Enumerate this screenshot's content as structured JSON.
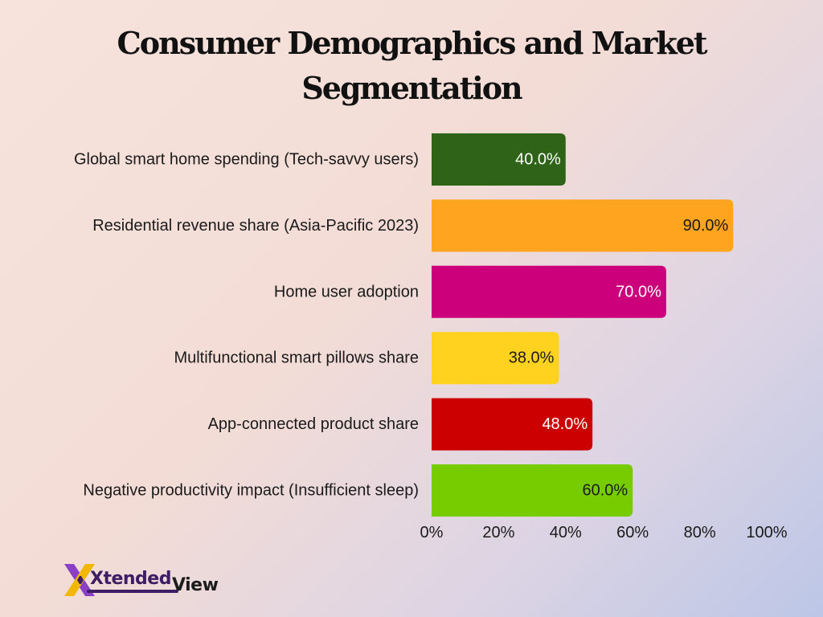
{
  "chart_data": {
    "type": "bar",
    "orientation": "horizontal",
    "title_lines": [
      "Consumer Demographics and Market",
      "Segmentation"
    ],
    "categories": [
      "Global smart home spending (Tech-savvy users)",
      "Residential revenue share (Asia-Pacific 2023)",
      "Home user adoption",
      "Multifunctional smart pillows share",
      "App-connected product share",
      "Negative productivity impact (Insufficient sleep)"
    ],
    "values": [
      40.0,
      90.0,
      70.0,
      38.0,
      48.0,
      60.0
    ],
    "value_labels": [
      "40.0%",
      "90.0%",
      "70.0%",
      "38.0%",
      "48.0%",
      "60.0%"
    ],
    "colors": [
      "#2f6418",
      "#ffa41f",
      "#cc007a",
      "#ffd21f",
      "#cc0000",
      "#77cc00"
    ],
    "label_colors": [
      "#ffffff",
      "#1a1a1a",
      "#ffffff",
      "#1a1a1a",
      "#ffffff",
      "#1a1a1a"
    ],
    "xlim": [
      0,
      100
    ],
    "xticks": [
      0,
      20,
      40,
      60,
      80,
      100
    ],
    "xtick_labels": [
      "0%",
      "20%",
      "40%",
      "60%",
      "80%",
      "100%"
    ],
    "grid": false,
    "legend": "none"
  },
  "logo": {
    "name_part1": "Xtended",
    "name_part2": "View",
    "colors": {
      "purple": "#8a3fc6",
      "gold": "#f2b705",
      "dark": "#3d1d63"
    }
  }
}
